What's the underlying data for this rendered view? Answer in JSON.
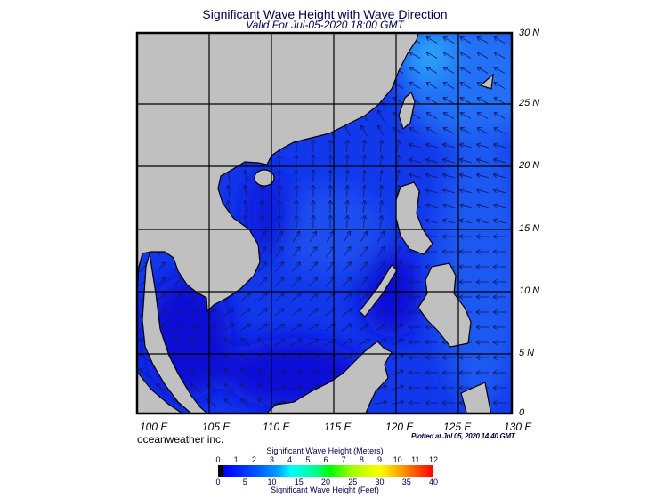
{
  "header": {
    "title": "Significant Wave Height with Wave Direction",
    "subtitle": "Valid For Jul-05-2020 18:00 GMT"
  },
  "map": {
    "lat_labels": [
      "30 N",
      "25 N",
      "20 N",
      "15 N",
      "10 N",
      "5 N",
      "0"
    ],
    "lon_labels": [
      "100 E",
      "105 E",
      "110 E",
      "115 E",
      "120 E",
      "125 E",
      "130 E"
    ],
    "colors": {
      "land": "#c0c0c0",
      "sea_low": "#0a10d8",
      "sea_mid": "#1848f0",
      "sea_high": "#2a8cf8"
    }
  },
  "footer": {
    "brand": "oceanweather inc.",
    "plotted": "Plotted at Jul 05, 2020 14:40 GMT"
  },
  "colorbar": {
    "title": "Significant Wave Height (Meters)",
    "meters": [
      "0",
      "1",
      "2",
      "3",
      "4",
      "5",
      "6",
      "7",
      "8",
      "9",
      "10",
      "11",
      "12"
    ],
    "feet": [
      "0",
      "5",
      "10",
      "15",
      "20",
      "25",
      "30",
      "35",
      "40"
    ],
    "footer": "Significant Wave Height (Feet)"
  }
}
